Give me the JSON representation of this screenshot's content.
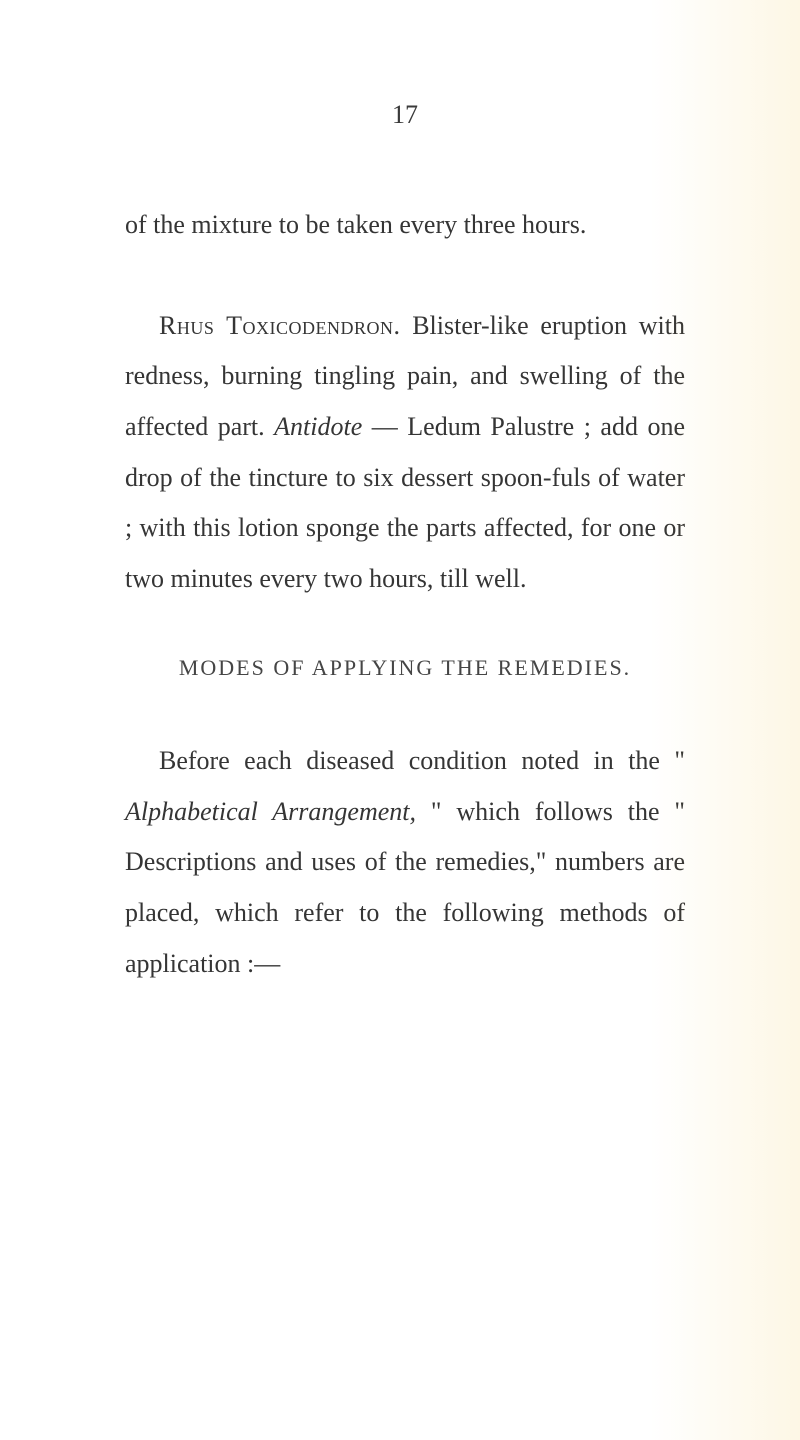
{
  "page_number": "17",
  "paragraph1": "of the mixture to be taken every three hours.",
  "paragraph2_caps1": "Rhus",
  "paragraph2_caps2": "Toxicodendron.",
  "paragraph2_part1": "Blister-like eruption with redness, burning tingling pain, and swelling of the affected part.",
  "paragraph2_italic": "Antidote",
  "paragraph2_part2": " — Ledum Palustre ; add one drop of the tincture to six dessert spoon-fuls of water ; with this lotion sponge the parts affected, for one or two minutes every two hours, till well.",
  "section_heading": "MODES OF APPLYING THE REMEDIES.",
  "paragraph3_part1": "Before each diseased condition noted in the \"",
  "paragraph3_italic": "Alphabetical Arrangement,",
  "paragraph3_part2": "\" which follows the \" Descriptions and uses of the remedies,\" numbers are placed, which refer to the following methods of application :—"
}
